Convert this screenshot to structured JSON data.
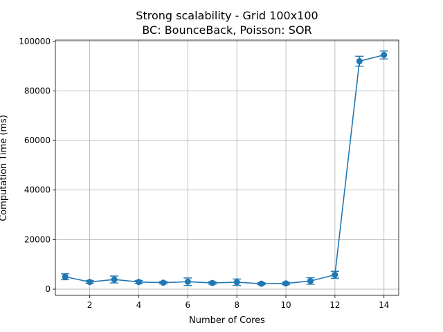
{
  "chart_data": {
    "type": "line",
    "title": "Strong scalability - Grid 100x100",
    "subtitle": "BC: BounceBack, Poisson: SOR",
    "xlabel": "Number of Cores",
    "ylabel": "Computation Time (ms)",
    "xlim": [
      0.6,
      14.6
    ],
    "ylim": [
      -2500,
      100500
    ],
    "grid": true,
    "x_ticks": [
      2,
      4,
      6,
      8,
      10,
      12,
      14
    ],
    "x_tick_labels": [
      "2",
      "4",
      "6",
      "8",
      "10",
      "12",
      "14"
    ],
    "y_ticks": [
      0,
      20000,
      40000,
      60000,
      80000,
      100000
    ],
    "y_tick_labels": [
      "0",
      "20000",
      "40000",
      "60000",
      "80000",
      "100000"
    ],
    "color": "#1f77b4",
    "series": [
      {
        "x": [
          1,
          2,
          3,
          4,
          5,
          6,
          7,
          8,
          9,
          10,
          11,
          12,
          13,
          14
        ],
        "values": [
          5000,
          2900,
          3900,
          2900,
          2600,
          3000,
          2500,
          2800,
          2200,
          2300,
          3300,
          5800,
          92000,
          94500
        ],
        "errors": [
          1200,
          600,
          1400,
          600,
          500,
          1500,
          500,
          1300,
          400,
          500,
          1300,
          1400,
          2000,
          1600
        ]
      }
    ]
  }
}
